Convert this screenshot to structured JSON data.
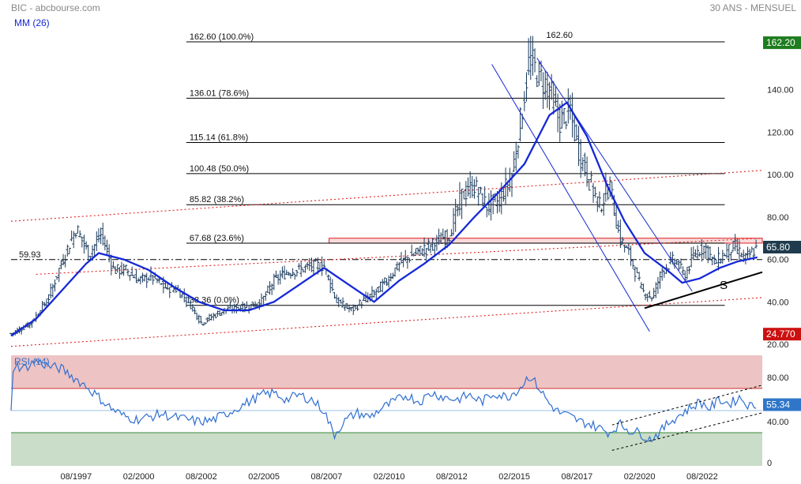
{
  "header": {
    "source": "BIC - abcbourse.com",
    "period": "30 ANS - MENSUEL",
    "ma_label": "MM (26)",
    "rsi_label": "RSI (14)"
  },
  "colors": {
    "price_bars": "#1a3a5c",
    "ma": "#1428d8",
    "fib": "#000000",
    "channel_red": "#e02020",
    "channel_blue": "#1428d8",
    "rsi_line": "#2f6fd0",
    "rsi_upper_zone": "#eec3c3",
    "rsi_lower_zone": "#c9ddc8",
    "tag_green": "#1e7d1e",
    "tag_dark": "#1f3b4d",
    "tag_red": "#cc1111",
    "tag_blue": "#2f76c8"
  },
  "chart_data": [
    {
      "type": "ohlc",
      "panel": "price",
      "x_start": 1995.0,
      "x_end": 2025.0,
      "ylim": [
        20,
        170
      ],
      "y_ticks": [
        "20.00",
        "40.00",
        "60.00",
        "80.00",
        "100.00",
        "120.00",
        "140.00",
        "162.20"
      ],
      "x_ticks": [
        {
          "x": 1997.6,
          "label": "08/1997"
        },
        {
          "x": 2000.1,
          "label": "02/2000"
        },
        {
          "x": 2002.6,
          "label": "08/2002"
        },
        {
          "x": 2005.1,
          "label": "02/2005"
        },
        {
          "x": 2007.6,
          "label": "08/2007"
        },
        {
          "x": 2010.1,
          "label": "02/2010"
        },
        {
          "x": 2012.6,
          "label": "08/2012"
        },
        {
          "x": 2015.1,
          "label": "02/2015"
        },
        {
          "x": 2017.6,
          "label": "08/2017"
        },
        {
          "x": 2020.1,
          "label": "02/2020"
        },
        {
          "x": 2022.6,
          "label": "08/2022"
        }
      ],
      "price_anchors": [
        [
          1995.0,
          25
        ],
        [
          1995.8,
          30
        ],
        [
          1996.5,
          42
        ],
        [
          1997.0,
          58
        ],
        [
          1997.6,
          75
        ],
        [
          1998.1,
          62
        ],
        [
          1998.6,
          72
        ],
        [
          1999.1,
          55
        ],
        [
          1999.6,
          55
        ],
        [
          2000.1,
          50
        ],
        [
          2000.6,
          52
        ],
        [
          2001.1,
          47
        ],
        [
          2001.6,
          46
        ],
        [
          2002.1,
          40
        ],
        [
          2002.6,
          30
        ],
        [
          2003.0,
          33
        ],
        [
          2003.5,
          36
        ],
        [
          2004.0,
          37
        ],
        [
          2004.5,
          38
        ],
        [
          2005.0,
          40
        ],
        [
          2005.5,
          50
        ],
        [
          2006.0,
          54
        ],
        [
          2006.5,
          55
        ],
        [
          2007.0,
          57
        ],
        [
          2007.5,
          57
        ],
        [
          2008.0,
          40
        ],
        [
          2008.6,
          36
        ],
        [
          2009.0,
          40
        ],
        [
          2009.5,
          44
        ],
        [
          2010.0,
          50
        ],
        [
          2010.5,
          58
        ],
        [
          2011.0,
          62
        ],
        [
          2011.5,
          65
        ],
        [
          2012.0,
          68
        ],
        [
          2012.5,
          72
        ],
        [
          2013.0,
          90
        ],
        [
          2013.5,
          95
        ],
        [
          2014.0,
          85
        ],
        [
          2014.5,
          88
        ],
        [
          2015.0,
          100
        ],
        [
          2015.4,
          130
        ],
        [
          2015.7,
          155
        ],
        [
          2016.0,
          148
        ],
        [
          2016.5,
          140
        ],
        [
          2016.9,
          125
        ],
        [
          2017.3,
          130
        ],
        [
          2017.7,
          110
        ],
        [
          2018.0,
          100
        ],
        [
          2018.5,
          85
        ],
        [
          2018.9,
          95
        ],
        [
          2019.3,
          70
        ],
        [
          2019.7,
          62
        ],
        [
          2020.2,
          45
        ],
        [
          2020.6,
          42
        ],
        [
          2021.0,
          55
        ],
        [
          2021.5,
          60
        ],
        [
          2021.9,
          52
        ],
        [
          2022.3,
          63
        ],
        [
          2022.7,
          66
        ],
        [
          2023.1,
          58
        ],
        [
          2023.5,
          63
        ],
        [
          2023.9,
          66
        ],
        [
          2024.3,
          60
        ],
        [
          2024.8,
          65.8
        ]
      ],
      "moving_average": {
        "label": "MM (26)",
        "points": [
          [
            1995.0,
            24
          ],
          [
            1996.0,
            32
          ],
          [
            1997.0,
            45
          ],
          [
            1998.0,
            58
          ],
          [
            1998.5,
            63
          ],
          [
            1999.5,
            60
          ],
          [
            2000.5,
            55
          ],
          [
            2001.5,
            47
          ],
          [
            2002.5,
            40
          ],
          [
            2003.5,
            36
          ],
          [
            2004.5,
            36
          ],
          [
            2005.5,
            40
          ],
          [
            2006.5,
            48
          ],
          [
            2007.5,
            56
          ],
          [
            2008.5,
            48
          ],
          [
            2009.5,
            40
          ],
          [
            2010.5,
            50
          ],
          [
            2011.5,
            58
          ],
          [
            2012.5,
            67
          ],
          [
            2013.5,
            80
          ],
          [
            2014.5,
            92
          ],
          [
            2015.5,
            105
          ],
          [
            2016.5,
            128
          ],
          [
            2017.2,
            134
          ],
          [
            2018.0,
            118
          ],
          [
            2018.8,
            95
          ],
          [
            2019.5,
            78
          ],
          [
            2020.3,
            63
          ],
          [
            2021.2,
            55
          ],
          [
            2021.8,
            49
          ],
          [
            2022.5,
            51
          ],
          [
            2023.3,
            56
          ],
          [
            2024.0,
            59
          ],
          [
            2024.8,
            61
          ]
        ]
      },
      "fibonacci": {
        "from_x": 2002.0,
        "to_x": 2023.5,
        "levels": [
          {
            "value": 162.6,
            "label": "162.60  (100.0%)"
          },
          {
            "value": 136.01,
            "label": "136.01  (78.6%)"
          },
          {
            "value": 115.14,
            "label": "115.14  (61.8%)"
          },
          {
            "value": 100.48,
            "label": "100.48  (50.0%)"
          },
          {
            "value": 85.82,
            "label": "85.82  (38.2%)"
          },
          {
            "value": 67.68,
            "label": "67.68  (23.6%)"
          },
          {
            "value": 38.36,
            "label": "38.36  (0.0%)"
          }
        ]
      },
      "annotations": {
        "peak_label": "162.60",
        "peak_x": 2015.8,
        "pivot_value": 59.93,
        "pivot_label": "59.93",
        "resistance_zone": [
          67.68,
          70.0
        ],
        "pattern_label": "S",
        "pattern_x": 2023.3,
        "pattern_y": 46
      },
      "channels": {
        "red_dotted": [
          [
            [
              1995.0,
              78
            ],
            [
              2025.0,
              102
            ]
          ],
          [
            [
              1996.0,
              53
            ],
            [
              2025.0,
              70
            ]
          ],
          [
            [
              1995.0,
              19
            ],
            [
              2025.0,
              42
            ]
          ]
        ],
        "blue": [
          [
            [
              2014.2,
              152
            ],
            [
              2020.5,
              26
            ]
          ],
          [
            [
              2016.0,
              155
            ],
            [
              2022.2,
              45
            ]
          ]
        ],
        "black": [
          [
            2020.3,
            37
          ],
          [
            2025.0,
            54
          ]
        ]
      },
      "price_tags": [
        {
          "value": 162.2,
          "label": "162.20",
          "color": "tag_green"
        },
        {
          "value": 65.8,
          "label": "65.80",
          "color": "tag_dark"
        },
        {
          "value": 24.77,
          "label": "24.770",
          "color": "tag_red"
        }
      ]
    },
    {
      "type": "line",
      "panel": "rsi",
      "label": "RSI (14)",
      "ylim": [
        0,
        100
      ],
      "y_ticks": [
        "0",
        "40.00",
        "80.00"
      ],
      "zones": {
        "upper": [
          70,
          100
        ],
        "lower": [
          0,
          30
        ]
      },
      "reference_line": 50,
      "points": [
        [
          1995.0,
          50
        ],
        [
          1995.1,
          92
        ],
        [
          1995.5,
          88
        ],
        [
          1996.0,
          95
        ],
        [
          1996.5,
          90
        ],
        [
          1997.0,
          88
        ],
        [
          1997.5,
          80
        ],
        [
          1998.0,
          72
        ],
        [
          1998.5,
          62
        ],
        [
          1999.0,
          52
        ],
        [
          1999.5,
          45
        ],
        [
          2000.0,
          42
        ],
        [
          2000.5,
          44
        ],
        [
          2001.0,
          47
        ],
        [
          2001.5,
          44
        ],
        [
          2002.0,
          42
        ],
        [
          2002.5,
          40
        ],
        [
          2003.0,
          41
        ],
        [
          2003.5,
          46
        ],
        [
          2004.0,
          52
        ],
        [
          2004.5,
          58
        ],
        [
          2005.0,
          64
        ],
        [
          2005.5,
          66
        ],
        [
          2006.0,
          60
        ],
        [
          2006.5,
          64
        ],
        [
          2007.0,
          60
        ],
        [
          2007.5,
          50
        ],
        [
          2007.9,
          28
        ],
        [
          2008.3,
          40
        ],
        [
          2008.8,
          48
        ],
        [
          2009.3,
          44
        ],
        [
          2009.8,
          52
        ],
        [
          2010.3,
          58
        ],
        [
          2010.8,
          64
        ],
        [
          2011.3,
          58
        ],
        [
          2011.8,
          66
        ],
        [
          2012.3,
          62
        ],
        [
          2012.8,
          60
        ],
        [
          2013.3,
          64
        ],
        [
          2013.8,
          58
        ],
        [
          2014.3,
          66
        ],
        [
          2014.8,
          62
        ],
        [
          2015.3,
          70
        ],
        [
          2015.7,
          82
        ],
        [
          2016.1,
          70
        ],
        [
          2016.5,
          56
        ],
        [
          2016.9,
          48
        ],
        [
          2017.3,
          45
        ],
        [
          2017.7,
          40
        ],
        [
          2018.1,
          38
        ],
        [
          2018.5,
          34
        ],
        [
          2018.9,
          30
        ],
        [
          2019.3,
          38
        ],
        [
          2019.7,
          32
        ],
        [
          2020.1,
          30
        ],
        [
          2020.5,
          24
        ],
        [
          2020.9,
          30
        ],
        [
          2021.3,
          40
        ],
        [
          2021.7,
          46
        ],
        [
          2022.1,
          52
        ],
        [
          2022.5,
          58
        ],
        [
          2022.9,
          52
        ],
        [
          2023.3,
          60
        ],
        [
          2023.7,
          56
        ],
        [
          2024.1,
          62
        ],
        [
          2024.5,
          54
        ],
        [
          2024.8,
          55.34
        ]
      ],
      "channel_lines": [
        [
          [
            2019.0,
            37
          ],
          [
            2025.0,
            73
          ]
        ],
        [
          [
            2019.0,
            14
          ],
          [
            2025.0,
            48
          ]
        ]
      ],
      "value_tag": {
        "value": 55.34,
        "label": "55.34",
        "color": "tag_blue"
      }
    }
  ]
}
